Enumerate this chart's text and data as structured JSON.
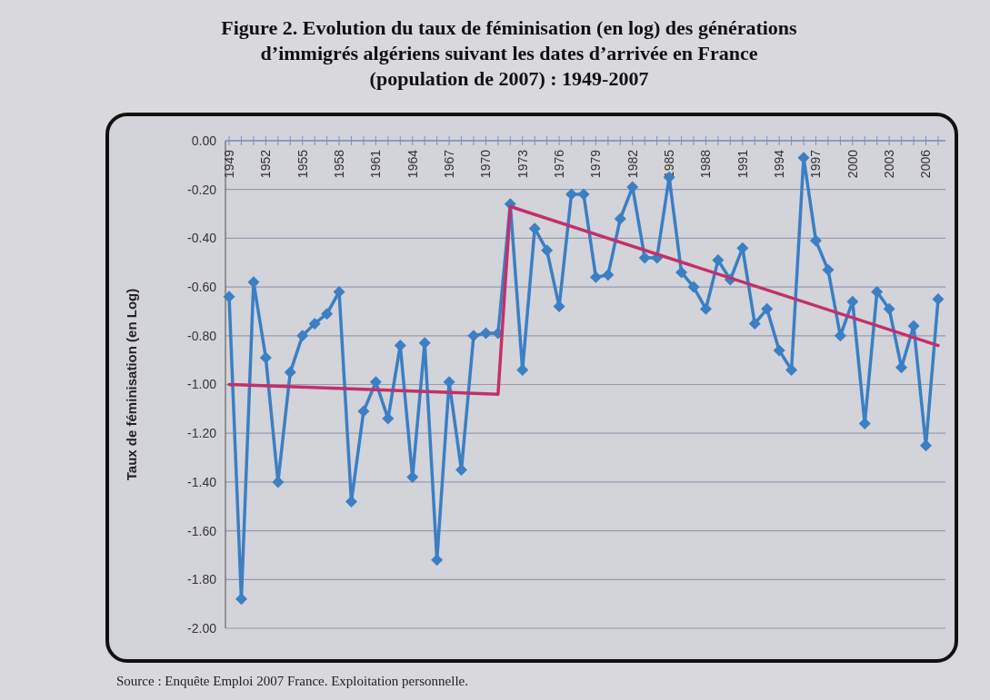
{
  "chart_data": {
    "type": "line",
    "title": "Figure 2. Evolution du taux de féminisation (en log) des générations\nd’immigrés algériens suivant les dates d’arrivée en France\n(population de 2007) : 1949-2007",
    "ylabel": "Taux de féminisation (en Log)",
    "annotations": [
      "Source : Enquête Emploi 2007 France. Exploitation personnelle."
    ],
    "x": [
      1949,
      1950,
      1951,
      1952,
      1953,
      1954,
      1955,
      1956,
      1957,
      1958,
      1959,
      1960,
      1961,
      1962,
      1963,
      1964,
      1965,
      1966,
      1967,
      1968,
      1969,
      1970,
      1971,
      1972,
      1973,
      1974,
      1975,
      1976,
      1977,
      1978,
      1979,
      1980,
      1981,
      1982,
      1983,
      1984,
      1985,
      1986,
      1987,
      1988,
      1989,
      1990,
      1991,
      1992,
      1993,
      1994,
      1995,
      1996,
      1997,
      1998,
      1999,
      2000,
      2001,
      2002,
      2003,
      2004,
      2005,
      2006,
      2007
    ],
    "series": [
      {
        "color": "#3b7fc4",
        "marker": "diamond",
        "values": [
          -0.64,
          -1.88,
          -0.58,
          -0.89,
          -1.4,
          -0.95,
          -0.8,
          -0.75,
          -0.71,
          -0.62,
          -1.48,
          -1.11,
          -0.99,
          -1.14,
          -0.84,
          -1.38,
          -0.83,
          -1.72,
          -0.99,
          -1.35,
          -0.8,
          -0.79,
          -0.79,
          -0.26,
          -0.94,
          -0.36,
          -0.45,
          -0.68,
          -0.22,
          -0.22,
          -0.56,
          -0.55,
          -0.32,
          -0.19,
          -0.48,
          -0.48,
          -0.15,
          -0.54,
          -0.6,
          -0.69,
          -0.49,
          -0.57,
          -0.44,
          -0.75,
          -0.69,
          -0.86,
          -0.94,
          -0.07,
          -0.41,
          -0.53,
          -0.8,
          -0.66,
          -1.16,
          -0.62,
          -0.69,
          -0.93,
          -0.76,
          -1.25,
          -0.65
        ]
      },
      {
        "color": "#c2306a",
        "marker": "none",
        "x": [
          1949,
          1971,
          1972,
          2007
        ],
        "values": [
          -1.0,
          -1.04,
          -0.27,
          -0.84
        ]
      }
    ],
    "xlim": [
      1948.7,
      2007.6
    ],
    "xticks": [
      1949,
      1952,
      1955,
      1958,
      1961,
      1964,
      1967,
      1970,
      1973,
      1976,
      1979,
      1982,
      1985,
      1988,
      1991,
      1994,
      1997,
      2000,
      2003,
      2006
    ],
    "ylim": [
      -2,
      0
    ],
    "yticks": [
      {
        "value": 0,
        "label": "0.00"
      },
      {
        "value": -0.2,
        "label": "-0.20"
      },
      {
        "value": -0.4,
        "label": "-0.40"
      },
      {
        "value": -0.6,
        "label": "-0.60"
      },
      {
        "value": -0.8,
        "label": "-0.80"
      },
      {
        "value": -1,
        "label": "-1.00"
      },
      {
        "value": -1.2,
        "label": "-1.20"
      },
      {
        "value": -1.4,
        "label": "-1.40"
      },
      {
        "value": -1.6,
        "label": "-1.60"
      },
      {
        "value": -1.8,
        "label": "-1.80"
      },
      {
        "value": -2,
        "label": "-2.00"
      }
    ],
    "grid": "y",
    "line_style": "solid"
  }
}
